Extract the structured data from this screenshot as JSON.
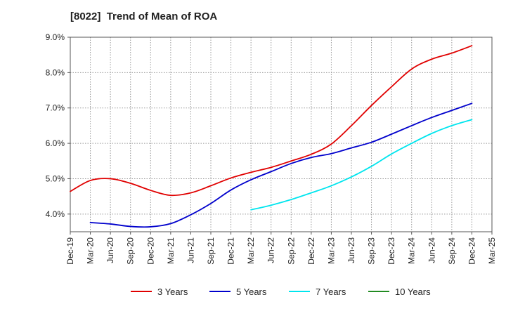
{
  "chart_data": {
    "type": "line",
    "title": "[8022]  Trend of Mean of ROA",
    "xlabel": "",
    "ylabel": "",
    "x_ticks": [
      "Dec-19",
      "Mar-20",
      "Jun-20",
      "Sep-20",
      "Dec-20",
      "Mar-21",
      "Jun-21",
      "Sep-21",
      "Dec-21",
      "Mar-22",
      "Jun-22",
      "Sep-22",
      "Dec-22",
      "Mar-23",
      "Jun-23",
      "Sep-23",
      "Dec-23",
      "Mar-24",
      "Jun-24",
      "Sep-24",
      "Dec-24",
      "Mar-25"
    ],
    "y_ticks": [
      "4.0%",
      "5.0%",
      "6.0%",
      "7.0%",
      "8.0%",
      "9.0%"
    ],
    "y_tick_values": [
      4.0,
      5.0,
      6.0,
      7.0,
      8.0,
      9.0
    ],
    "ylim": [
      3.5,
      9.0
    ],
    "grid": true,
    "legend_position": "bottom",
    "series": [
      {
        "name": "3 Years",
        "color": "#e00000",
        "values": [
          4.64,
          4.95,
          5.0,
          4.87,
          4.67,
          4.53,
          4.6,
          4.8,
          5.02,
          5.18,
          5.32,
          5.5,
          5.69,
          5.98,
          6.5,
          7.07,
          7.6,
          8.1,
          8.38,
          8.55,
          8.76,
          null
        ]
      },
      {
        "name": "5 Years",
        "color": "#0000cc",
        "values": [
          null,
          3.76,
          3.72,
          3.65,
          3.64,
          3.73,
          3.98,
          4.3,
          4.68,
          4.97,
          5.2,
          5.43,
          5.6,
          5.71,
          5.87,
          6.03,
          6.26,
          6.5,
          6.73,
          6.93,
          7.13,
          null
        ]
      },
      {
        "name": "7 Years",
        "color": "#00e5ee",
        "values": [
          null,
          null,
          null,
          null,
          null,
          null,
          null,
          null,
          null,
          4.12,
          4.25,
          4.41,
          4.6,
          4.8,
          5.05,
          5.35,
          5.7,
          6.0,
          6.28,
          6.5,
          6.67,
          null
        ]
      },
      {
        "name": "10 Years",
        "color": "#228b22",
        "values": [
          null,
          null,
          null,
          null,
          null,
          null,
          null,
          null,
          null,
          null,
          null,
          null,
          null,
          null,
          null,
          null,
          null,
          null,
          null,
          null,
          null,
          null
        ]
      }
    ]
  }
}
